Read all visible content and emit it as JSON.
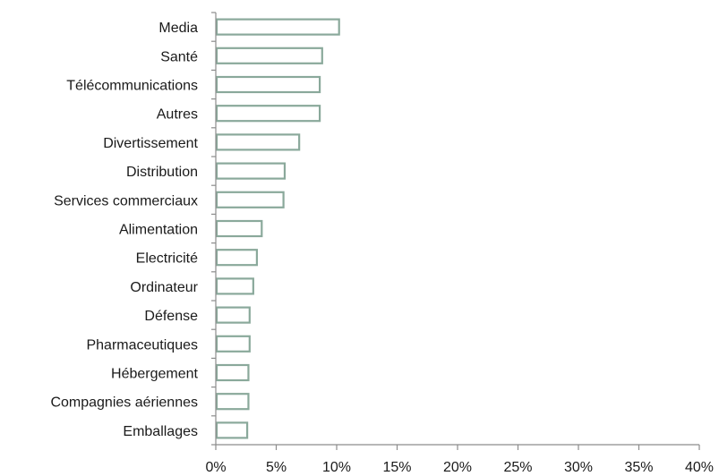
{
  "chart_data": {
    "type": "bar",
    "orientation": "horizontal",
    "categories": [
      "Media",
      "Santé",
      "Télécommunications",
      "Autres",
      "Divertissement",
      "Distribution",
      "Services commerciaux",
      "Alimentation",
      "Electricité",
      "Ordinateur",
      "Défense",
      "Pharmaceutiques",
      "Hébergement",
      "Compagnies aériennes",
      "Emballages"
    ],
    "values": [
      10.2,
      8.8,
      8.6,
      8.6,
      6.9,
      5.7,
      5.6,
      3.8,
      3.4,
      3.1,
      2.8,
      2.8,
      2.7,
      2.7,
      2.6
    ],
    "xlim": [
      0,
      40
    ],
    "x_ticks": [
      "0%",
      "5%",
      "10%",
      "15%",
      "20%",
      "25%",
      "30%",
      "35%",
      "40%"
    ],
    "title": "",
    "xlabel": "",
    "ylabel": "",
    "grid": false,
    "colors": {
      "bar_stroke": "#8aa99b",
      "bar_fill": "#ffffff",
      "axis": "#8c8c8c"
    }
  }
}
